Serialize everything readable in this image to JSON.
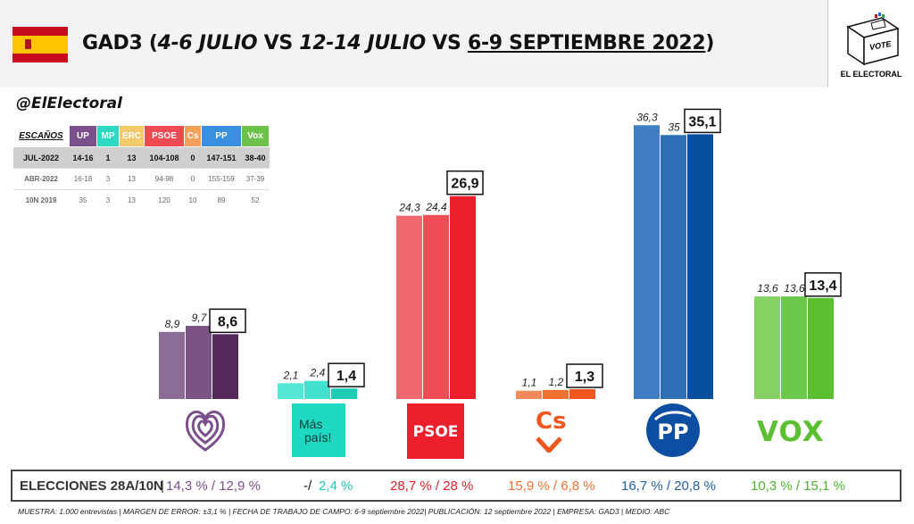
{
  "header": {
    "title_main": "GAD3",
    "title_paren_open": "(",
    "title_jul1": "4-6 JULIO",
    "title_vs1": " VS ",
    "title_jul2": "12-14 JULIO",
    "title_vs2": " VS ",
    "title_sept": "6-9 SEPTIEMBRE 2022",
    "title_paren_close": ")"
  },
  "logo": {
    "vote": "VOTE",
    "name": "EL ELECTORAL"
  },
  "handle": "@ElElectoral",
  "seats_table": {
    "corner": "ESCAÑOS",
    "parties": [
      {
        "name": "UP",
        "color": "#7b4f8b"
      },
      {
        "name": "MP",
        "color": "#2ed8c3"
      },
      {
        "name": "ERC",
        "color": "#f2c96b"
      },
      {
        "name": "PSOE",
        "color": "#f04a52"
      },
      {
        "name": "Cs",
        "color": "#f5a05a"
      },
      {
        "name": "PP",
        "color": "#3a8fe0"
      },
      {
        "name": "Vox",
        "color": "#6cc24a"
      }
    ],
    "rows": [
      {
        "label": "JUL-2022",
        "values": [
          "14-16",
          "1",
          "13",
          "104-108",
          "0",
          "147-151",
          "38-40"
        ]
      },
      {
        "label": "ABR-2022",
        "values": [
          "16-18",
          "3",
          "13",
          "94-98",
          "0",
          "155-159",
          "37-39"
        ]
      },
      {
        "label": "10N 2019",
        "values": [
          "35",
          "3",
          "13",
          "120",
          "10",
          "89",
          "52"
        ]
      }
    ]
  },
  "chart_data": {
    "type": "bar",
    "title": "GAD3 (4-6 JULIO VS 12-14 JULIO VS 6-9 SEPTIEMBRE 2022)",
    "categories": [
      "UP",
      "Más país",
      "PSOE",
      "Cs",
      "PP",
      "VOX"
    ],
    "series": [
      {
        "name": "4-6 julio",
        "values": [
          8.9,
          2.1,
          24.3,
          1.1,
          36.3,
          13.6
        ],
        "labels": [
          "8,9",
          "2,1",
          "24,3",
          "1,1",
          "36,3",
          "13,6"
        ]
      },
      {
        "name": "12-14 julio",
        "values": [
          9.7,
          2.4,
          24.4,
          1.2,
          35.0,
          13.6
        ],
        "labels": [
          "9,7",
          "2,4",
          "24,4",
          "1,2",
          "35",
          "13,6"
        ]
      },
      {
        "name": "6-9 septiembre 2022",
        "values": [
          8.6,
          1.4,
          26.9,
          1.3,
          35.1,
          13.4
        ],
        "labels": [
          "8,6",
          "1,4",
          "26,9",
          "1,3",
          "35,1",
          "13,4"
        ]
      }
    ],
    "colors": [
      [
        "#8c6d95",
        "#7a5584",
        "#56295b"
      ],
      [
        "#56e6d6",
        "#42e1cf",
        "#1ec9b6"
      ],
      [
        "#f0696e",
        "#ee4d55",
        "#ec1f2b"
      ],
      [
        "#f38a5a",
        "#f27030",
        "#f0561e"
      ],
      [
        "#3f7ec2",
        "#2f6fb8",
        "#07509f"
      ],
      [
        "#85d163",
        "#6cc74a",
        "#5bbf31"
      ]
    ],
    "ylim": [
      0,
      40
    ]
  },
  "party_logos": {
    "mas_pais_line1": "Más",
    "mas_pais_line2": "país!",
    "psoe": "PSOE",
    "cs": "Cs",
    "pp": "PP",
    "vox": "VOX"
  },
  "results": {
    "label": "ELECCIONES 28A/10N",
    "sep": "|",
    "up": "14,3 % / 12,9 %",
    "mp_a": "-/",
    "mp_b": "2,4 %",
    "psoe": "28,7  % / 28 %",
    "cs": "15,9 % / 6,8 %",
    "pp": "16,7 % / 20,8 %",
    "vox": "10,3 % / 15,1 %",
    "colors": {
      "up": "#7b4f8b",
      "mp": "#1ec9b6",
      "psoe": "#ec1f2b",
      "cs": "#f27030",
      "pp": "#1f5fa8",
      "vox": "#4db32d"
    }
  },
  "footnote": "MUESTRA: 1.000 entrevistas | MARGEN DE ERROR: ±3,1 % | FECHA DE TRABAJO DE CAMPO: 6-9 septiembre 2022| PUBLICACIÓN: 12 septiembre 2022 | EMPRESA: GAD3 | MEDIO: ABC"
}
